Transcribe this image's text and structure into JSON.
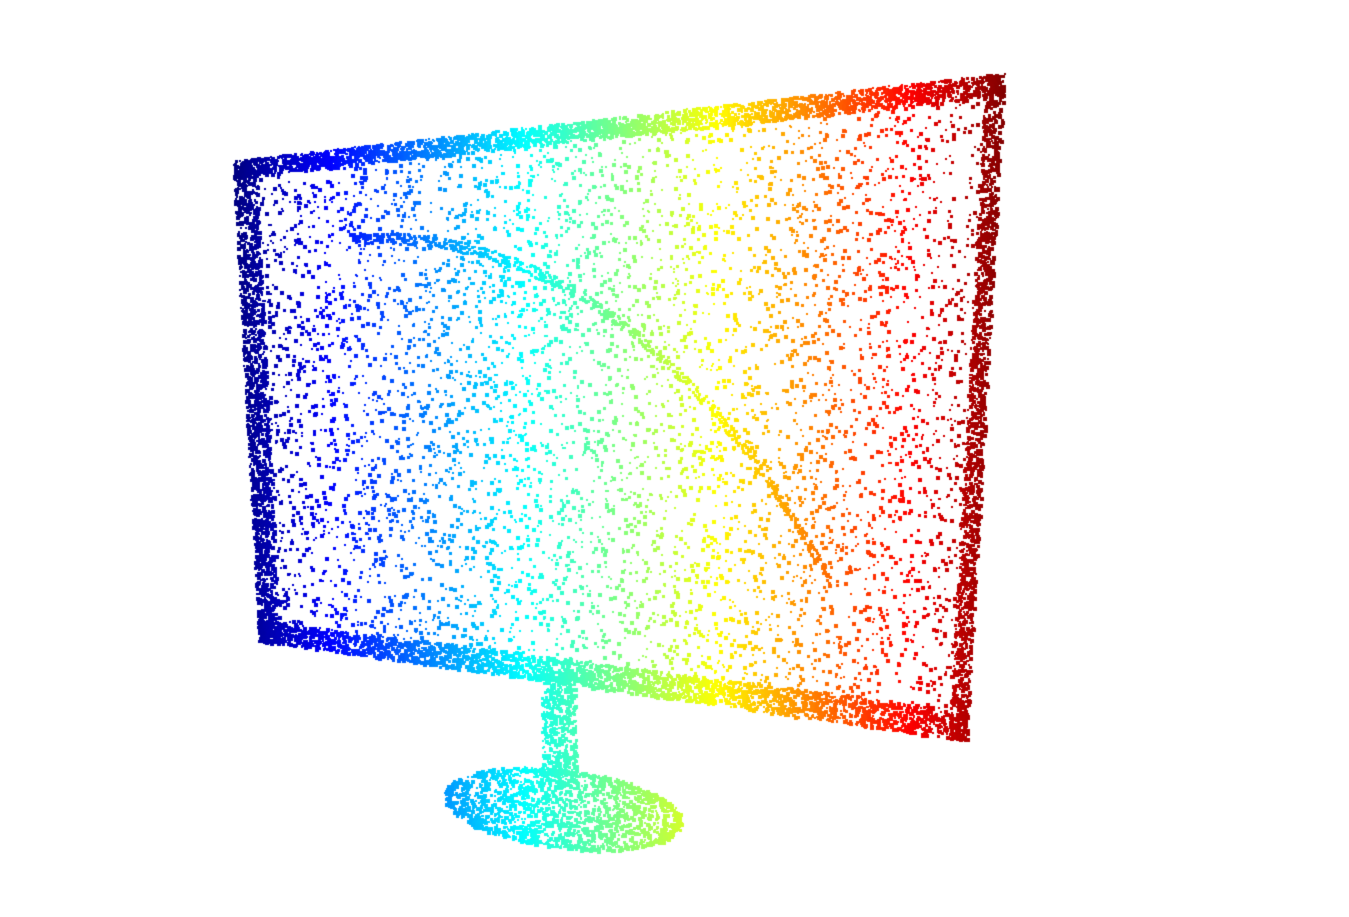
{
  "scene": {
    "subject": "monitor-point-cloud",
    "background_color": "#ffffff",
    "colormap": "jet",
    "colormap_stops": [
      "#00007f",
      "#0000ff",
      "#007fff",
      "#00ffff",
      "#7fff7f",
      "#ffff00",
      "#ff7f00",
      "#ff0000",
      "#7f0000"
    ],
    "colormap_axis": "horizontal-left-to-right",
    "point_shape": "square"
  }
}
